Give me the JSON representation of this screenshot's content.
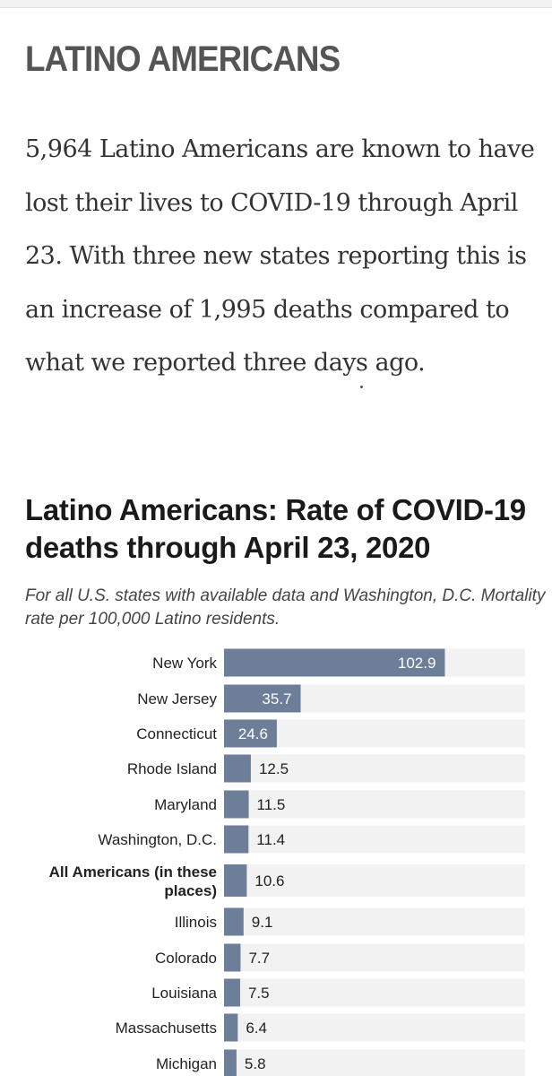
{
  "article": {
    "section_title": "LATINO AMERICANS",
    "body": "5,964 Latino Americans are known to have lost their lives to COVID-19 through April 23. With three new states reporting this is an increase of 1,995 deaths compared to what we reported three days ago."
  },
  "colors": {
    "bar": "#6c7e98",
    "track": "#f2f2f2",
    "label": "#222222"
  },
  "chart_data": {
    "type": "bar",
    "orientation": "horizontal",
    "title": "Latino Americans: Rate of COVID-19 deaths through April 23, 2020",
    "subtitle": "For all U.S. states with available data and Washington, D.C. Mortality rate per 100,000 Latino residents.",
    "categories": [
      "New York",
      "New Jersey",
      "Connecticut",
      "Rhode Island",
      "Maryland",
      "Washington, D.C.",
      "All Americans (in these places)",
      "Illinois",
      "Colorado",
      "Louisiana",
      "Massachusetts",
      "Michigan"
    ],
    "values": [
      102.9,
      35.7,
      24.6,
      12.5,
      11.5,
      11.4,
      10.6,
      9.1,
      7.7,
      7.5,
      6.4,
      5.8
    ],
    "value_labels": [
      "102.9",
      "35.7",
      "24.6",
      "12.5",
      "11.5",
      "11.4",
      "10.6",
      "9.1",
      "7.7",
      "7.5",
      "6.4",
      "5.8"
    ],
    "highlighted": [
      "All Americans (in these places)"
    ],
    "xlim": [
      0,
      140
    ],
    "grid": false,
    "legend": "none"
  }
}
